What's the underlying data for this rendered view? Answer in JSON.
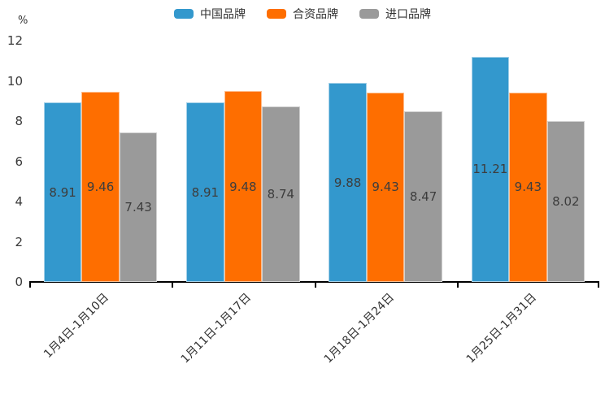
{
  "chart_data": {
    "type": "bar",
    "title": "",
    "unit_label": "%",
    "categories": [
      "1月4日-1月10日",
      "1月11日-1月17日",
      "1月18日-1月24日",
      "1月25日-1月31日"
    ],
    "series": [
      {
        "name": "中国品牌",
        "color": "#3398cd",
        "values": [
          8.91,
          8.91,
          9.88,
          11.21
        ]
      },
      {
        "name": "合资品牌",
        "color": "#fe6e00",
        "values": [
          9.46,
          9.48,
          9.43,
          9.43
        ]
      },
      {
        "name": "进口品牌",
        "color": "#9a9a9a",
        "values": [
          7.43,
          8.74,
          8.47,
          8.02
        ]
      }
    ],
    "y_ticks": [
      0,
      2,
      4,
      6,
      8,
      10,
      12
    ],
    "ylim": [
      0,
      12
    ],
    "grid": false,
    "legend_position": "top-center",
    "value_labels": "inside-center, 2 decimals",
    "axis_color": "#000000",
    "tick_text_color": "#3a3a3a",
    "value_text_color": "#3d3d3d"
  }
}
